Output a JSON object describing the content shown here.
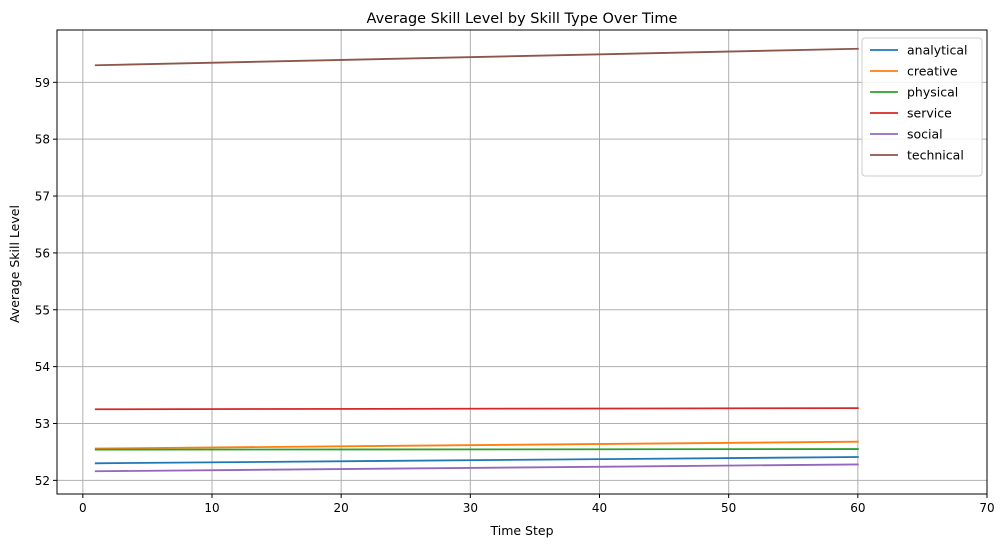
{
  "chart_data": {
    "type": "line",
    "title": "Average Skill Level by Skill Type Over Time",
    "xlabel": "Time Step",
    "ylabel": "Average Skill Level",
    "xlim": [
      -2,
      70
    ],
    "ylim": [
      51.76,
      59.92
    ],
    "xticks": [
      0,
      10,
      20,
      30,
      40,
      50,
      60,
      70
    ],
    "yticks": [
      52,
      53,
      54,
      55,
      56,
      57,
      58,
      59
    ],
    "grid": true,
    "legend_position": "top-right",
    "series": [
      {
        "name": "analytical",
        "color": "#1f77b4",
        "x": [
          1,
          60
        ],
        "y": [
          52.3,
          52.41
        ]
      },
      {
        "name": "creative",
        "color": "#ff7f0e",
        "x": [
          1,
          60
        ],
        "y": [
          52.56,
          52.68
        ]
      },
      {
        "name": "physical",
        "color": "#2ca02c",
        "x": [
          1,
          60
        ],
        "y": [
          52.54,
          52.55
        ]
      },
      {
        "name": "service",
        "color": "#d62728",
        "x": [
          1,
          60
        ],
        "y": [
          53.25,
          53.27
        ]
      },
      {
        "name": "social",
        "color": "#9467bd",
        "x": [
          1,
          60
        ],
        "y": [
          52.16,
          52.28
        ]
      },
      {
        "name": "technical",
        "color": "#8c564b",
        "x": [
          1,
          60
        ],
        "y": [
          59.3,
          59.59
        ]
      }
    ]
  }
}
